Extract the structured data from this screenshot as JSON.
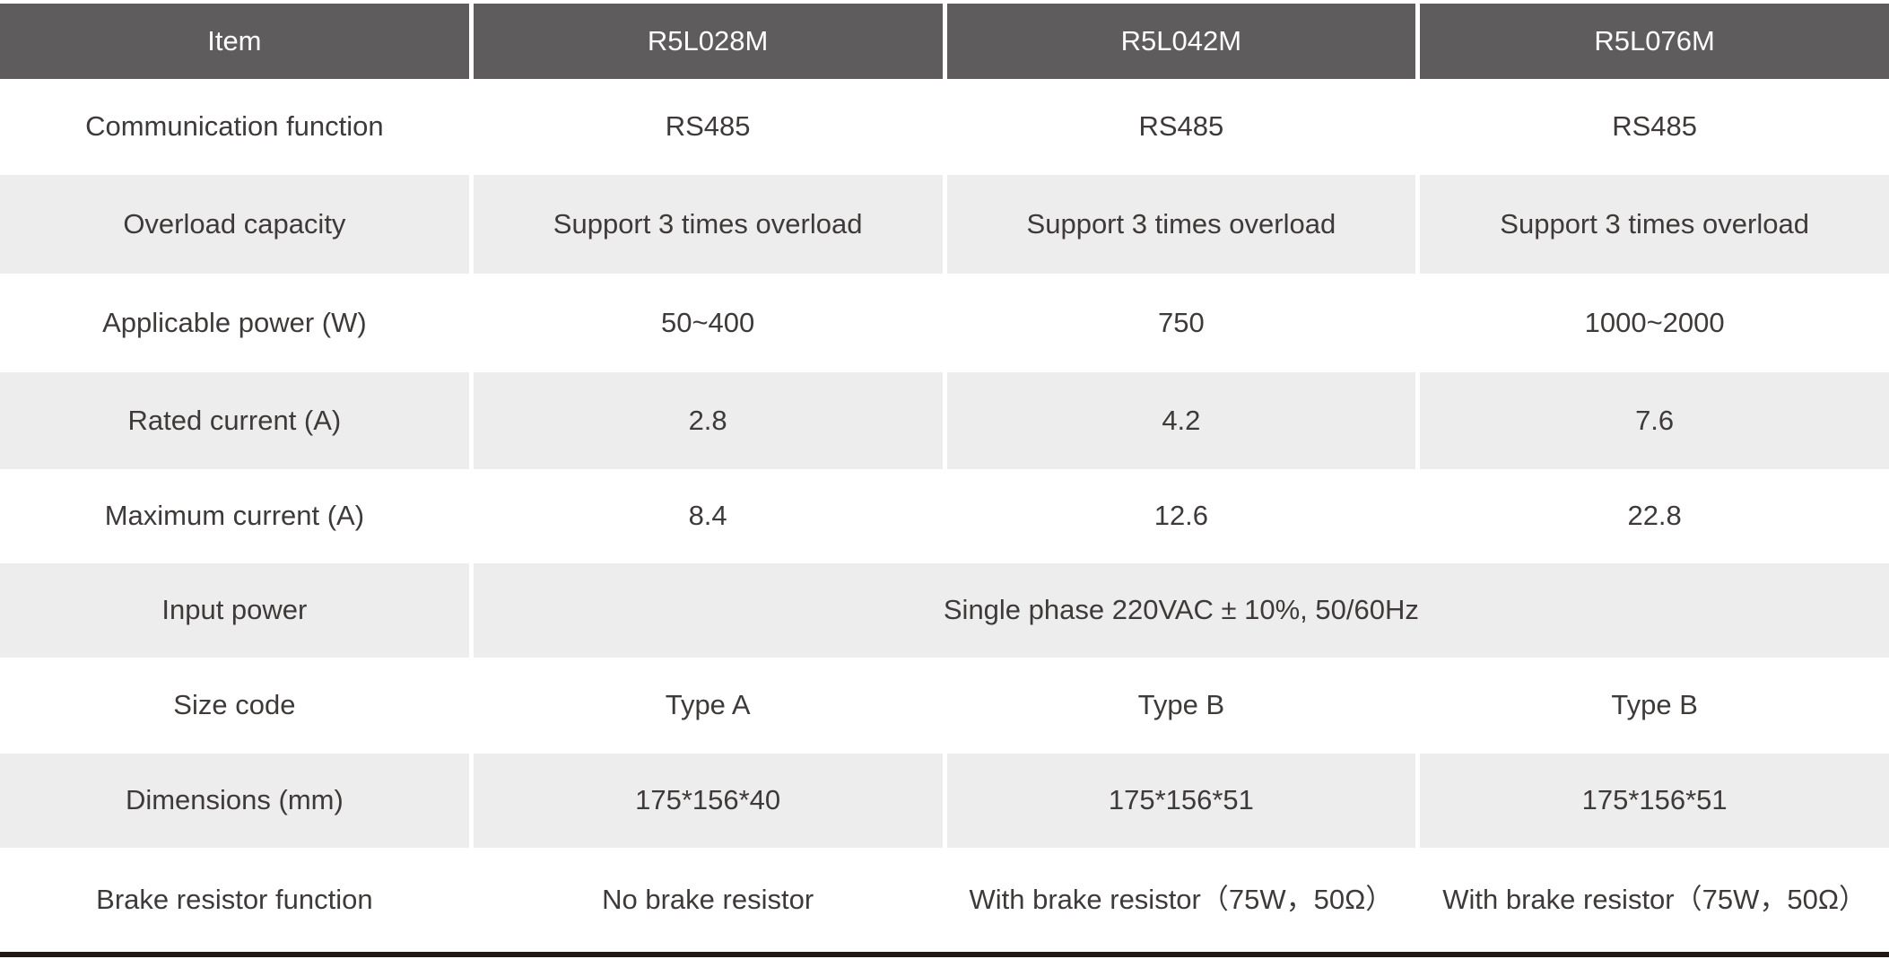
{
  "colors": {
    "header_bg": "#5e5c5c",
    "header_text": "#ffffff",
    "row_alt_bg": "#ededed",
    "body_text": "#3e3a39",
    "bottom_rule": "#211815"
  },
  "table": {
    "header": {
      "item_label": "Item",
      "models": [
        "R5L028M",
        "R5L042M",
        "R5L076M"
      ]
    },
    "rows": [
      {
        "label": "Communication function",
        "values": [
          "RS485",
          "RS485",
          "RS485"
        ]
      },
      {
        "label": "Overload capacity",
        "values": [
          "Support 3 times overload",
          "Support 3 times overload",
          "Support 3 times overload"
        ]
      },
      {
        "label": "Applicable power (W)",
        "values": [
          "50~400",
          "750",
          "1000~2000"
        ]
      },
      {
        "label": "Rated current (A)",
        "values": [
          "2.8",
          "4.2",
          "7.6"
        ]
      },
      {
        "label": "Maximum current (A)",
        "values": [
          "8.4",
          "12.6",
          "22.8"
        ]
      },
      {
        "label": "Input power",
        "merged_value": "Single phase 220VAC ± 10%, 50/60Hz"
      },
      {
        "label": "Size code",
        "values": [
          "Type A",
          "Type B",
          "Type B"
        ]
      },
      {
        "label": "Dimensions (mm)",
        "values": [
          "175*156*40",
          "175*156*51",
          "175*156*51"
        ]
      },
      {
        "label": "Brake resistor function",
        "values": [
          "No brake resistor",
          "With brake resistor（75W，50Ω）",
          "With brake resistor（75W，50Ω）"
        ]
      }
    ]
  }
}
